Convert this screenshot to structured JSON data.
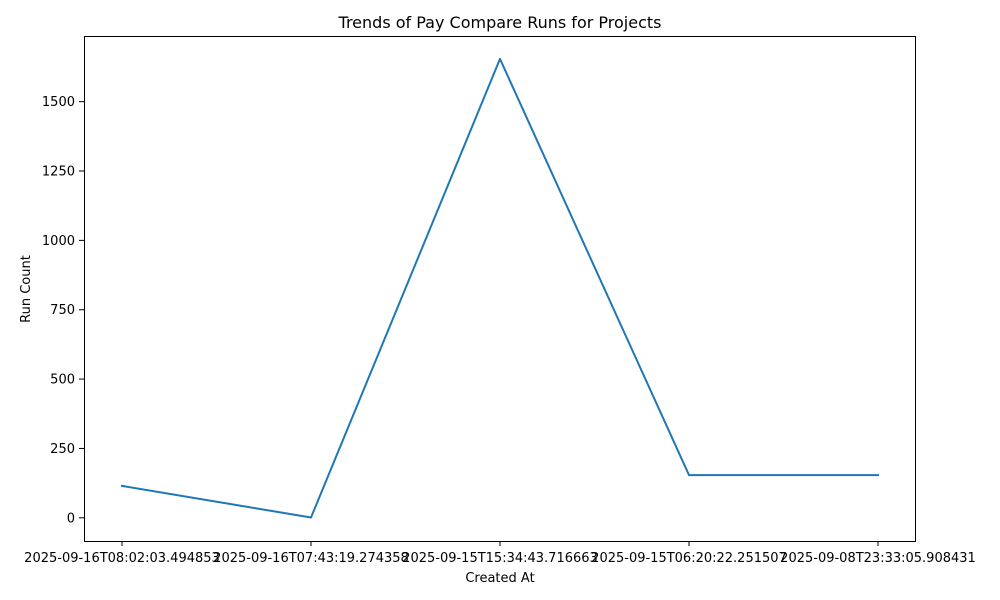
{
  "chart_data": {
    "type": "line",
    "title": "Trends of Pay Compare Runs for Projects",
    "xlabel": "Created At",
    "ylabel": "Run Count",
    "categories": [
      "2025-09-16T08:02:03.494853",
      "2025-09-16T07:43:19.274358",
      "2025-09-15T15:34:43.716663",
      "2025-09-15T06:20:22.251507",
      "2025-09-08T23:33:05.908431"
    ],
    "series": [
      {
        "values": [
          115,
          1,
          1654,
          154,
          154
        ],
        "color": "#1f77b4"
      }
    ],
    "ylim": [
      -83.65,
      1736.65
    ],
    "yticks": [
      0,
      250,
      500,
      750,
      1000,
      1250,
      1500
    ],
    "grid": false
  }
}
